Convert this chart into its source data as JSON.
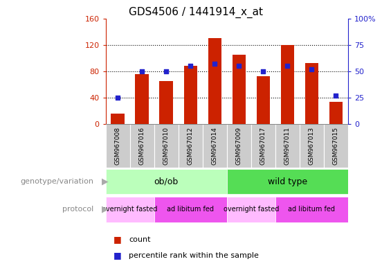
{
  "title": "GDS4506 / 1441914_x_at",
  "samples": [
    "GSM967008",
    "GSM967016",
    "GSM967010",
    "GSM967012",
    "GSM967014",
    "GSM967009",
    "GSM967017",
    "GSM967011",
    "GSM967013",
    "GSM967015"
  ],
  "counts": [
    15,
    76,
    65,
    88,
    130,
    105,
    72,
    120,
    92,
    33
  ],
  "percentile_ranks": [
    25,
    50,
    50,
    55,
    57,
    55,
    50,
    55,
    52,
    27
  ],
  "ylim_left": [
    0,
    160
  ],
  "ylim_right": [
    0,
    100
  ],
  "yticks_left": [
    0,
    40,
    80,
    120,
    160
  ],
  "yticks_right": [
    0,
    25,
    50,
    75,
    100
  ],
  "ytick_labels_right": [
    "0",
    "25",
    "50",
    "75",
    "100%"
  ],
  "bar_color": "#cc2200",
  "dot_color": "#2222cc",
  "left_axis_color": "#cc2200",
  "right_axis_color": "#2222cc",
  "grid_color": "#000000",
  "background_color": "#ffffff",
  "sample_bg_color": "#cccccc",
  "genotype_groups": [
    {
      "label": "ob/ob",
      "start": 0,
      "end": 5,
      "color": "#bbffbb"
    },
    {
      "label": "wild type",
      "start": 5,
      "end": 10,
      "color": "#55dd55"
    }
  ],
  "protocol_groups": [
    {
      "label": "overnight fasted",
      "start": 0,
      "end": 2,
      "color": "#ffbbff"
    },
    {
      "label": "ad libitum fed",
      "start": 2,
      "end": 5,
      "color": "#ee55ee"
    },
    {
      "label": "overnight fasted",
      "start": 5,
      "end": 7,
      "color": "#ffbbff"
    },
    {
      "label": "ad libitum fed",
      "start": 7,
      "end": 10,
      "color": "#ee55ee"
    }
  ],
  "legend_count_color": "#cc2200",
  "legend_pct_color": "#2222cc",
  "genotype_label": "genotype/variation",
  "protocol_label": "protocol",
  "count_label": "count",
  "pct_label": "percentile rank within the sample"
}
